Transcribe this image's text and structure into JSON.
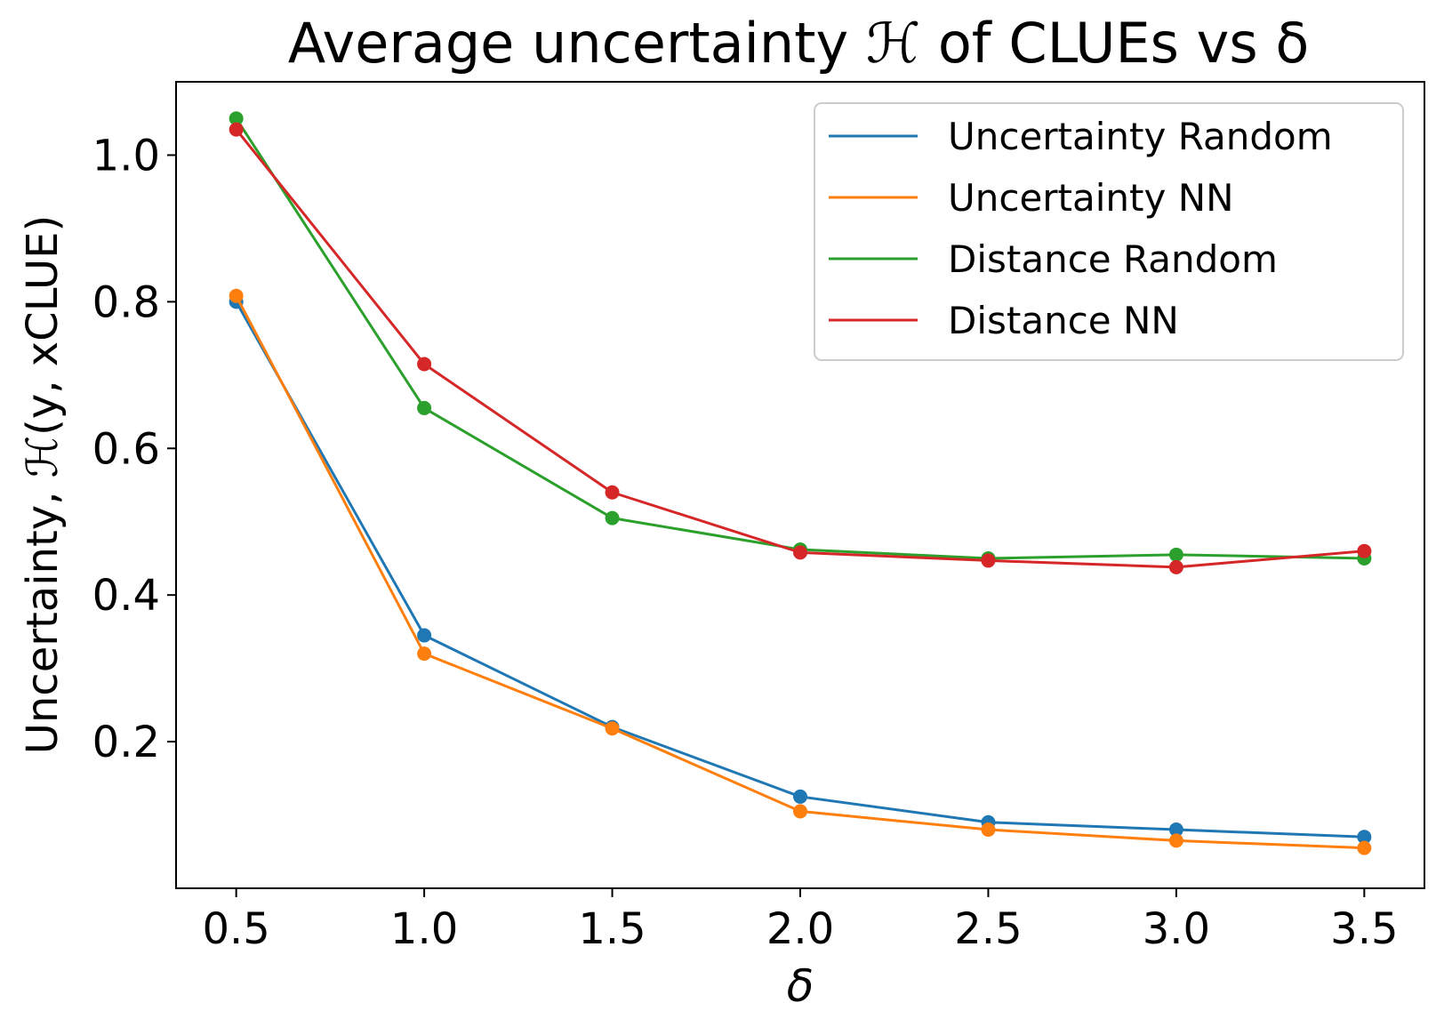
{
  "chart_data": {
    "type": "line",
    "title": "Average uncertainty ℋ of CLUEs vs δ",
    "xlabel": "δ",
    "ylabel": "Uncertainty, ℋ(y, xCLUE)",
    "x": [
      0.5,
      1.0,
      1.5,
      2.0,
      2.5,
      3.0,
      3.5
    ],
    "xlim": [
      0.34,
      3.66
    ],
    "ylim": [
      0.0,
      1.1
    ],
    "xticks": [
      "0.5",
      "1.0",
      "1.5",
      "2.0",
      "2.5",
      "3.0",
      "3.5"
    ],
    "yticks": [
      "0.2",
      "0.4",
      "0.6",
      "0.8",
      "1.0"
    ],
    "grid": false,
    "legend_position": "top-right",
    "series": [
      {
        "name": "Uncertainty Random",
        "color": "#1f77b4",
        "values": [
          0.8,
          0.345,
          0.22,
          0.125,
          0.09,
          0.08,
          0.07
        ]
      },
      {
        "name": "Uncertainty NN",
        "color": "#ff7f0e",
        "values": [
          0.808,
          0.32,
          0.218,
          0.105,
          0.08,
          0.065,
          0.055
        ]
      },
      {
        "name": "Distance Random",
        "color": "#2ca02c",
        "values": [
          1.05,
          0.655,
          0.505,
          0.462,
          0.45,
          0.455,
          0.45
        ]
      },
      {
        "name": "Distance NN",
        "color": "#d62728",
        "values": [
          1.035,
          0.715,
          0.54,
          0.458,
          0.447,
          0.438,
          0.46
        ]
      }
    ]
  }
}
